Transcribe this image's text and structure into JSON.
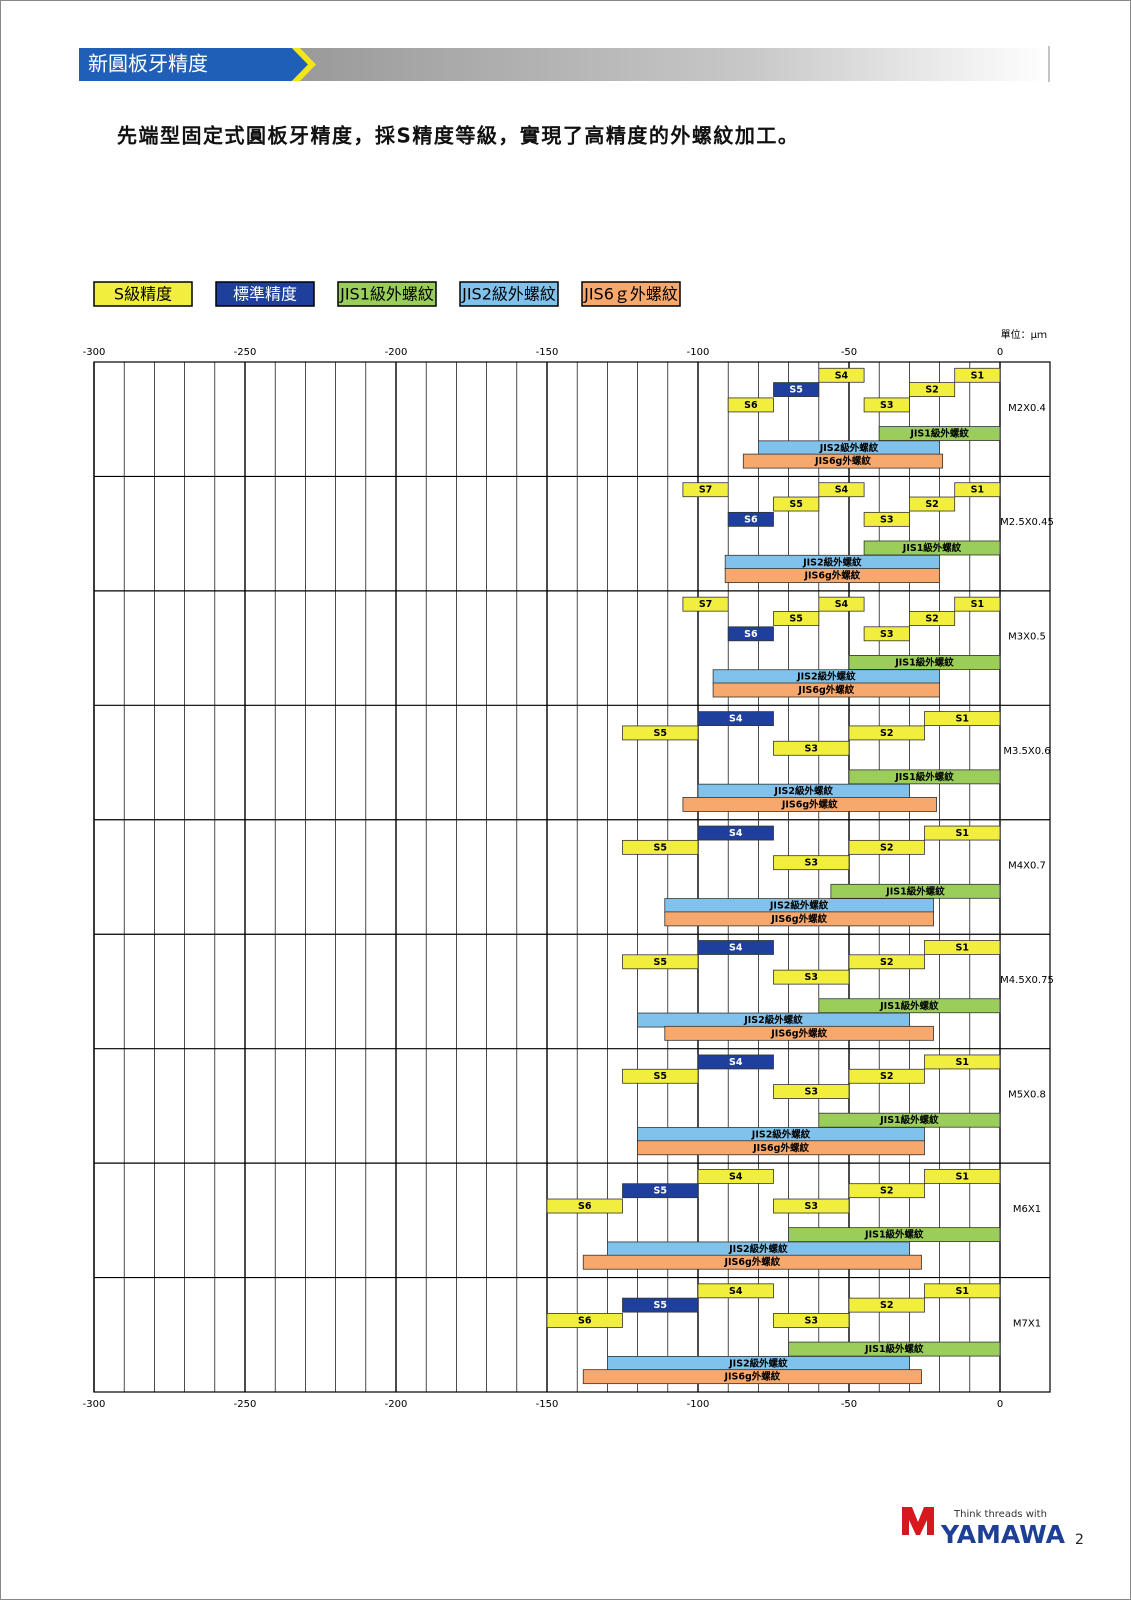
{
  "header": {
    "title": "新圓板牙精度"
  },
  "subtitle": "先端型固定式圓板牙精度，採S精度等級，實現了高精度的外螺紋加工。",
  "footer": {
    "tagline": "Think threads with",
    "brand": "YAMAWA",
    "page": "2"
  },
  "chart_data": {
    "type": "range-bar",
    "unit": "單位：μｍ",
    "legend": [
      {
        "name": "S級精度",
        "color": "#f2ee3d"
      },
      {
        "name": "標準精度",
        "color": "#1f3f9c"
      },
      {
        "name": "JIS1級外螺紋",
        "color": "#9acd5a"
      },
      {
        "name": "JIS2級外螺紋",
        "color": "#80c2ec"
      },
      {
        "name": "JIS6ｇ外螺紋",
        "color": "#f7a86c"
      }
    ],
    "xlim": [
      -300,
      0
    ],
    "xticks": [
      -300,
      -250,
      -200,
      -150,
      -100,
      -50,
      0
    ],
    "xminor": [
      -290,
      -280,
      -270,
      -260,
      -240,
      -230,
      -220,
      -210,
      -190,
      -180,
      -170,
      -160,
      -140,
      -130,
      -120,
      -110,
      -90,
      -80,
      -70,
      -60,
      -40,
      -30,
      -20,
      -10
    ],
    "rows": [
      {
        "name": "M2X0.4",
        "bars": [
          {
            "label": "S4",
            "series": 0,
            "range": [
              -60,
              -45
            ]
          },
          {
            "label": "S1",
            "series": 0,
            "range": [
              -15,
              0
            ]
          },
          {
            "label": "S5",
            "series": 1,
            "range": [
              -75,
              -60
            ]
          },
          {
            "label": "S2",
            "series": 0,
            "range": [
              -30,
              -15
            ]
          },
          {
            "label": "S6",
            "series": 0,
            "range": [
              -90,
              -75
            ]
          },
          {
            "label": "S3",
            "series": 0,
            "range": [
              -45,
              -30
            ]
          },
          {
            "label": "JIS1級外螺紋",
            "series": 2,
            "range": [
              -40,
              0
            ]
          },
          {
            "label": "JIS2級外螺紋",
            "series": 3,
            "range": [
              -80,
              -20
            ]
          },
          {
            "label": "JIS6g外螺紋",
            "series": 4,
            "range": [
              -85,
              -19
            ]
          }
        ]
      },
      {
        "name": "M2.5X0.45",
        "bars": [
          {
            "label": "S7",
            "series": 0,
            "range": [
              -105,
              -90
            ]
          },
          {
            "label": "S4",
            "series": 0,
            "range": [
              -60,
              -45
            ]
          },
          {
            "label": "S1",
            "series": 0,
            "range": [
              -15,
              0
            ]
          },
          {
            "label": "S5",
            "series": 0,
            "range": [
              -75,
              -60
            ]
          },
          {
            "label": "S2",
            "series": 0,
            "range": [
              -30,
              -15
            ]
          },
          {
            "label": "S6",
            "series": 1,
            "range": [
              -90,
              -75
            ]
          },
          {
            "label": "S3",
            "series": 0,
            "range": [
              -45,
              -30
            ]
          },
          {
            "label": "JIS1級外螺紋",
            "series": 2,
            "range": [
              -45,
              0
            ]
          },
          {
            "label": "JIS2級外螺紋",
            "series": 3,
            "range": [
              -91,
              -20
            ]
          },
          {
            "label": "JIS6g外螺紋",
            "series": 4,
            "range": [
              -91,
              -20
            ]
          }
        ]
      },
      {
        "name": "M3X0.5",
        "bars": [
          {
            "label": "S7",
            "series": 0,
            "range": [
              -105,
              -90
            ]
          },
          {
            "label": "S4",
            "series": 0,
            "range": [
              -60,
              -45
            ]
          },
          {
            "label": "S1",
            "series": 0,
            "range": [
              -15,
              0
            ]
          },
          {
            "label": "S5",
            "series": 0,
            "range": [
              -75,
              -60
            ]
          },
          {
            "label": "S2",
            "series": 0,
            "range": [
              -30,
              -15
            ]
          },
          {
            "label": "S6",
            "series": 1,
            "range": [
              -90,
              -75
            ]
          },
          {
            "label": "S3",
            "series": 0,
            "range": [
              -45,
              -30
            ]
          },
          {
            "label": "JIS1級外螺紋",
            "series": 2,
            "range": [
              -50,
              0
            ]
          },
          {
            "label": "JIS2級外螺紋",
            "series": 3,
            "range": [
              -95,
              -20
            ]
          },
          {
            "label": "JIS6g外螺紋",
            "series": 4,
            "range": [
              -95,
              -20
            ]
          }
        ]
      },
      {
        "name": "M3.5X0.6",
        "bars": [
          {
            "label": "S4",
            "series": 1,
            "range": [
              -100,
              -75
            ]
          },
          {
            "label": "S1",
            "series": 0,
            "range": [
              -25,
              0
            ]
          },
          {
            "label": "S5",
            "series": 0,
            "range": [
              -125,
              -100
            ]
          },
          {
            "label": "S2",
            "series": 0,
            "range": [
              -50,
              -25
            ]
          },
          {
            "label": "S3",
            "series": 0,
            "range": [
              -75,
              -50
            ]
          },
          {
            "label": "JIS1級外螺紋",
            "series": 2,
            "range": [
              -50,
              0
            ]
          },
          {
            "label": "JIS2級外螺紋",
            "series": 3,
            "range": [
              -100,
              -30
            ]
          },
          {
            "label": "JIS6g外螺紋",
            "series": 4,
            "range": [
              -105,
              -21
            ]
          }
        ]
      },
      {
        "name": "M4X0.7",
        "bars": [
          {
            "label": "S4",
            "series": 1,
            "range": [
              -100,
              -75
            ]
          },
          {
            "label": "S1",
            "series": 0,
            "range": [
              -25,
              0
            ]
          },
          {
            "label": "S5",
            "series": 0,
            "range": [
              -125,
              -100
            ]
          },
          {
            "label": "S2",
            "series": 0,
            "range": [
              -50,
              -25
            ]
          },
          {
            "label": "S3",
            "series": 0,
            "range": [
              -75,
              -50
            ]
          },
          {
            "label": "JIS1級外螺紋",
            "series": 2,
            "range": [
              -56,
              0
            ]
          },
          {
            "label": "JIS2級外螺紋",
            "series": 3,
            "range": [
              -111,
              -22
            ]
          },
          {
            "label": "JIS6g外螺紋",
            "series": 4,
            "range": [
              -111,
              -22
            ]
          }
        ]
      },
      {
        "name": "M4.5X0.75",
        "bars": [
          {
            "label": "S4",
            "series": 1,
            "range": [
              -100,
              -75
            ]
          },
          {
            "label": "S1",
            "series": 0,
            "range": [
              -25,
              0
            ]
          },
          {
            "label": "S5",
            "series": 0,
            "range": [
              -125,
              -100
            ]
          },
          {
            "label": "S2",
            "series": 0,
            "range": [
              -50,
              -25
            ]
          },
          {
            "label": "S3",
            "series": 0,
            "range": [
              -75,
              -50
            ]
          },
          {
            "label": "JIS1級外螺紋",
            "series": 2,
            "range": [
              -60,
              0
            ]
          },
          {
            "label": "JIS2級外螺紋",
            "series": 3,
            "range": [
              -120,
              -30
            ]
          },
          {
            "label": "JIS6g外螺紋",
            "series": 4,
            "range": [
              -111,
              -22
            ]
          }
        ]
      },
      {
        "name": "M5X0.8",
        "bars": [
          {
            "label": "S4",
            "series": 1,
            "range": [
              -100,
              -75
            ]
          },
          {
            "label": "S1",
            "series": 0,
            "range": [
              -25,
              0
            ]
          },
          {
            "label": "S5",
            "series": 0,
            "range": [
              -125,
              -100
            ]
          },
          {
            "label": "S2",
            "series": 0,
            "range": [
              -50,
              -25
            ]
          },
          {
            "label": "S3",
            "series": 0,
            "range": [
              -75,
              -50
            ]
          },
          {
            "label": "JIS1級外螺紋",
            "series": 2,
            "range": [
              -60,
              0
            ]
          },
          {
            "label": "JIS2級外螺紋",
            "series": 3,
            "range": [
              -120,
              -25
            ]
          },
          {
            "label": "JIS6g外螺紋",
            "series": 4,
            "range": [
              -120,
              -25
            ]
          }
        ]
      },
      {
        "name": "M6X1",
        "bars": [
          {
            "label": "S4",
            "series": 0,
            "range": [
              -100,
              -75
            ]
          },
          {
            "label": "S1",
            "series": 0,
            "range": [
              -25,
              0
            ]
          },
          {
            "label": "S5",
            "series": 1,
            "range": [
              -125,
              -100
            ]
          },
          {
            "label": "S2",
            "series": 0,
            "range": [
              -50,
              -25
            ]
          },
          {
            "label": "S6",
            "series": 0,
            "range": [
              -150,
              -125
            ]
          },
          {
            "label": "S3",
            "series": 0,
            "range": [
              -75,
              -50
            ]
          },
          {
            "label": "JIS1級外螺紋",
            "series": 2,
            "range": [
              -70,
              0
            ]
          },
          {
            "label": "JIS2級外螺紋",
            "series": 3,
            "range": [
              -130,
              -30
            ]
          },
          {
            "label": "JIS6g外螺紋",
            "series": 4,
            "range": [
              -138,
              -26
            ]
          }
        ]
      },
      {
        "name": "M7X1",
        "bars": [
          {
            "label": "S4",
            "series": 0,
            "range": [
              -100,
              -75
            ]
          },
          {
            "label": "S1",
            "series": 0,
            "range": [
              -25,
              0
            ]
          },
          {
            "label": "S5",
            "series": 1,
            "range": [
              -125,
              -100
            ]
          },
          {
            "label": "S2",
            "series": 0,
            "range": [
              -50,
              -25
            ]
          },
          {
            "label": "S6",
            "series": 0,
            "range": [
              -150,
              -125
            ]
          },
          {
            "label": "S3",
            "series": 0,
            "range": [
              -75,
              -50
            ]
          },
          {
            "label": "JIS1級外螺紋",
            "series": 2,
            "range": [
              -70,
              0
            ]
          },
          {
            "label": "JIS2級外螺紋",
            "series": 3,
            "range": [
              -130,
              -30
            ]
          },
          {
            "label": "JIS6g外螺紋",
            "series": 4,
            "range": [
              -138,
              -26
            ]
          }
        ]
      }
    ]
  }
}
